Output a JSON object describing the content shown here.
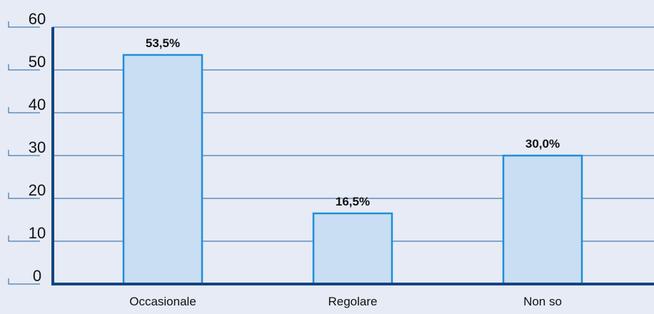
{
  "chart_data": {
    "type": "bar",
    "categories": [
      "Occasionale",
      "Regolare",
      "Non so"
    ],
    "values": [
      53.5,
      16.5,
      30.0
    ],
    "data_labels": [
      "53,5%",
      "16,5%",
      "30,0%"
    ],
    "ylim": [
      0,
      60
    ],
    "yticks": [
      0,
      10,
      20,
      30,
      40,
      50,
      60
    ],
    "ytick_labels": [
      "0",
      "10",
      "20",
      "30",
      "40",
      "50",
      "60"
    ],
    "grid": true,
    "legend": "none",
    "colors": {
      "background": "#e6ebf5",
      "bar_fill": "#c9def2",
      "bar_stroke": "#1e8fd8",
      "gridline": "#1f5f9f",
      "axis": "#14457f",
      "text": "#111111"
    }
  }
}
